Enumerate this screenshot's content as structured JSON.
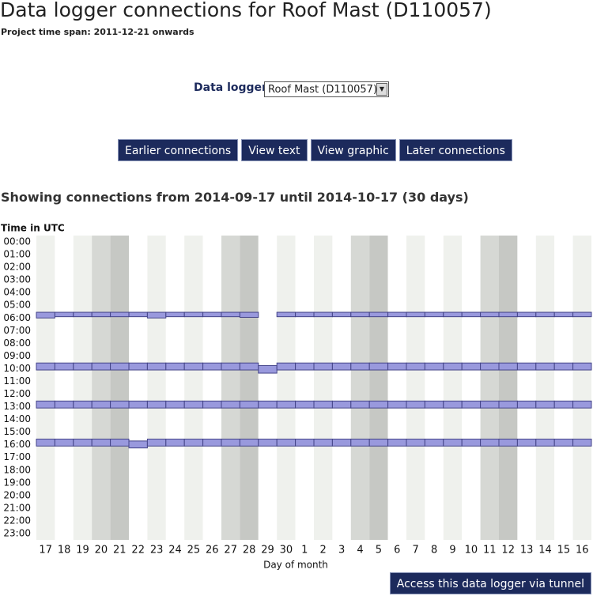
{
  "header": {
    "title": "Data logger connections for Roof Mast (D110057)",
    "subtitle": "Project time span: 2011-12-21 onwards"
  },
  "controls": {
    "logger_label": "Data logger",
    "logger_option": "Roof Mast (D110057)",
    "buttons": [
      "Earlier connections",
      "View text",
      "View graphic",
      "Later connections"
    ]
  },
  "chart_data": {
    "type": "timeline",
    "title": "Showing connections from 2014-09-17 until 2014-10-17 (30 days)",
    "y_label": "Time in UTC",
    "x_label": "Day of month",
    "categories": [
      "17",
      "18",
      "19",
      "20",
      "21",
      "22",
      "23",
      "24",
      "25",
      "26",
      "27",
      "28",
      "29",
      "30",
      "1",
      "2",
      "3",
      "4",
      "5",
      "6",
      "7",
      "8",
      "9",
      "10",
      "11",
      "12",
      "13",
      "14",
      "15",
      "16"
    ],
    "ylim": [
      0,
      24
    ],
    "yticks": [
      {
        "value": 0,
        "label": "00:00"
      },
      {
        "value": 1,
        "label": "01:00"
      },
      {
        "value": 2,
        "label": "02:00"
      },
      {
        "value": 3,
        "label": "03:00"
      },
      {
        "value": 4,
        "label": "04:00"
      },
      {
        "value": 5,
        "label": "05:00"
      },
      {
        "value": 6,
        "label": "06:00"
      },
      {
        "value": 7,
        "label": "07:00"
      },
      {
        "value": 8,
        "label": "08:00"
      },
      {
        "value": 9,
        "label": "09:00"
      },
      {
        "value": 10,
        "label": "10:00"
      },
      {
        "value": 11,
        "label": "11:00"
      },
      {
        "value": 12,
        "label": "12:00"
      },
      {
        "value": 13,
        "label": "13:00"
      },
      {
        "value": 14,
        "label": "14:00"
      },
      {
        "value": 15,
        "label": "15:00"
      },
      {
        "value": 16,
        "label": "16:00"
      },
      {
        "value": 17,
        "label": "17:00"
      },
      {
        "value": 18,
        "label": "18:00"
      },
      {
        "value": 19,
        "label": "19:00"
      },
      {
        "value": 20,
        "label": "20:00"
      },
      {
        "value": 21,
        "label": "21:00"
      },
      {
        "value": 22,
        "label": "22:00"
      },
      {
        "value": 23,
        "label": "23:00"
      }
    ],
    "color": "#9999dd",
    "connections": [
      [
        [
          6.05,
          6.5
        ],
        [
          10.05,
          10.6
        ],
        [
          13.05,
          13.6
        ],
        [
          16.05,
          16.6
        ]
      ],
      [
        [
          6.05,
          6.4
        ],
        [
          10.05,
          10.6
        ],
        [
          13.05,
          13.6
        ],
        [
          16.05,
          16.6
        ]
      ],
      [
        [
          6.05,
          6.4
        ],
        [
          10.05,
          10.6
        ],
        [
          13.05,
          13.6
        ],
        [
          16.05,
          16.6
        ]
      ],
      [
        [
          6.05,
          6.4
        ],
        [
          10.05,
          10.6
        ],
        [
          13.05,
          13.6
        ],
        [
          16.05,
          16.6
        ]
      ],
      [
        [
          6.05,
          6.4
        ],
        [
          10.05,
          10.6
        ],
        [
          13.05,
          13.6
        ],
        [
          16.05,
          16.6
        ]
      ],
      [
        [
          6.05,
          6.4
        ],
        [
          10.05,
          10.6
        ],
        [
          13.05,
          13.6
        ],
        [
          16.2,
          16.75
        ]
      ],
      [
        [
          6.05,
          6.5
        ],
        [
          10.05,
          10.6
        ],
        [
          13.05,
          13.6
        ],
        [
          16.05,
          16.6
        ]
      ],
      [
        [
          6.05,
          6.4
        ],
        [
          10.05,
          10.6
        ],
        [
          13.05,
          13.6
        ],
        [
          16.05,
          16.6
        ]
      ],
      [
        [
          6.05,
          6.4
        ],
        [
          10.05,
          10.6
        ],
        [
          13.05,
          13.6
        ],
        [
          16.05,
          16.6
        ]
      ],
      [
        [
          6.05,
          6.4
        ],
        [
          10.05,
          10.6
        ],
        [
          13.05,
          13.6
        ],
        [
          16.05,
          16.6
        ]
      ],
      [
        [
          6.05,
          6.4
        ],
        [
          10.05,
          10.6
        ],
        [
          13.05,
          13.6
        ],
        [
          16.05,
          16.6
        ]
      ],
      [
        [
          6.05,
          6.45
        ],
        [
          10.05,
          10.6
        ],
        [
          13.05,
          13.6
        ],
        [
          16.05,
          16.6
        ]
      ],
      [
        [
          10.25,
          10.85
        ],
        [
          13.05,
          13.6
        ],
        [
          16.05,
          16.6
        ]
      ],
      [
        [
          6.05,
          6.4
        ],
        [
          10.05,
          10.6
        ],
        [
          13.05,
          13.6
        ],
        [
          16.05,
          16.6
        ]
      ],
      [
        [
          6.05,
          6.4
        ],
        [
          10.05,
          10.6
        ],
        [
          13.05,
          13.6
        ],
        [
          16.05,
          16.6
        ]
      ],
      [
        [
          6.05,
          6.4
        ],
        [
          10.05,
          10.6
        ],
        [
          13.05,
          13.6
        ],
        [
          16.05,
          16.6
        ]
      ],
      [
        [
          6.05,
          6.4
        ],
        [
          10.05,
          10.6
        ],
        [
          13.05,
          13.6
        ],
        [
          16.05,
          16.6
        ]
      ],
      [
        [
          6.05,
          6.4
        ],
        [
          10.05,
          10.6
        ],
        [
          13.05,
          13.6
        ],
        [
          16.05,
          16.6
        ]
      ],
      [
        [
          6.05,
          6.4
        ],
        [
          10.05,
          10.6
        ],
        [
          13.05,
          13.6
        ],
        [
          16.05,
          16.6
        ]
      ],
      [
        [
          6.05,
          6.4
        ],
        [
          10.05,
          10.6
        ],
        [
          13.05,
          13.6
        ],
        [
          16.05,
          16.6
        ]
      ],
      [
        [
          6.05,
          6.4
        ],
        [
          10.05,
          10.6
        ],
        [
          13.05,
          13.6
        ],
        [
          16.05,
          16.6
        ]
      ],
      [
        [
          6.05,
          6.4
        ],
        [
          10.05,
          10.6
        ],
        [
          13.05,
          13.6
        ],
        [
          16.05,
          16.6
        ]
      ],
      [
        [
          6.05,
          6.4
        ],
        [
          10.05,
          10.6
        ],
        [
          13.05,
          13.6
        ],
        [
          16.05,
          16.6
        ]
      ],
      [
        [
          6.05,
          6.4
        ],
        [
          10.05,
          10.6
        ],
        [
          13.05,
          13.6
        ],
        [
          16.05,
          16.6
        ]
      ],
      [
        [
          6.05,
          6.4
        ],
        [
          10.05,
          10.6
        ],
        [
          13.05,
          13.6
        ],
        [
          16.05,
          16.6
        ]
      ],
      [
        [
          6.05,
          6.4
        ],
        [
          10.05,
          10.6
        ],
        [
          13.05,
          13.6
        ],
        [
          16.05,
          16.6
        ]
      ],
      [
        [
          6.05,
          6.4
        ],
        [
          10.05,
          10.6
        ],
        [
          13.05,
          13.6
        ],
        [
          16.05,
          16.6
        ]
      ],
      [
        [
          6.05,
          6.4
        ],
        [
          10.05,
          10.6
        ],
        [
          13.05,
          13.6
        ],
        [
          16.05,
          16.6
        ]
      ],
      [
        [
          6.05,
          6.4
        ],
        [
          10.05,
          10.6
        ],
        [
          13.05,
          13.6
        ],
        [
          16.05,
          16.6
        ]
      ],
      [
        [
          6.05,
          6.4
        ],
        [
          10.05,
          10.6
        ],
        [
          13.05,
          13.6
        ],
        [
          16.05,
          16.6
        ]
      ]
    ]
  },
  "footer": {
    "button": "Access this data logger via tunnel"
  }
}
